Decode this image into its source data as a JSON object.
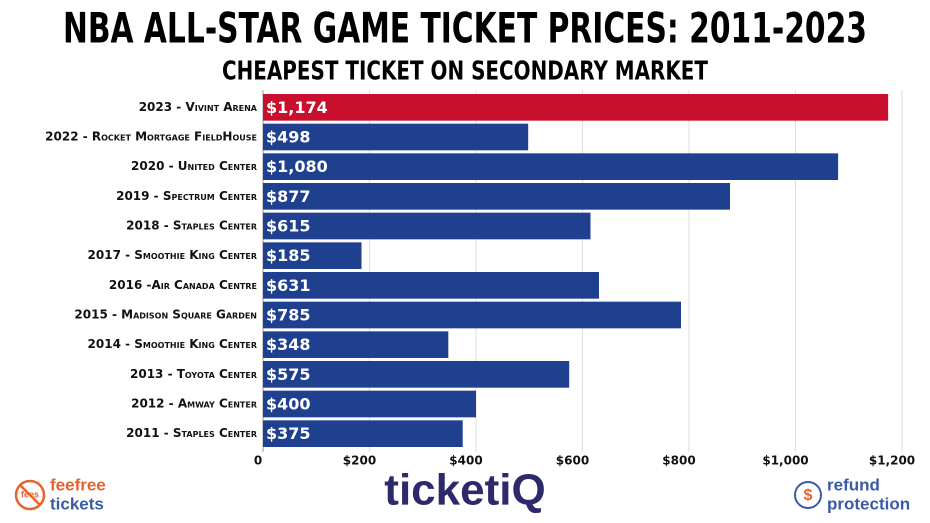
{
  "chart_data": {
    "type": "bar",
    "orientation": "horizontal",
    "title": "NBA ALL-STAR GAME TICKET PRICES: 2011-2023",
    "subtitle": "CHEAPEST TICKET ON SECONDARY MARKET",
    "categories": [
      "2023 - Vivint Arena",
      "2022 - Rocket Mortgage FieldHouse",
      "2020 - United Center",
      "2019 - Spectrum Center",
      "2018 - Staples Center",
      "2017 - Smoothie King Center",
      "2016 -Air Canada Centre",
      "2015 - Madison Square Garden",
      "2014 - Smoothie King Center",
      "2013 - Toyota Center",
      "2012 - Amway Center",
      "2011 - Staples Center"
    ],
    "values": [
      1174,
      498,
      1080,
      877,
      615,
      185,
      631,
      785,
      348,
      575,
      400,
      375
    ],
    "value_labels": [
      "$1,174",
      "$498",
      "$1,080",
      "$877",
      "$615",
      "$185",
      "$631",
      "$785",
      "$348",
      "$575",
      "$400",
      "$375"
    ],
    "colors": [
      "#c8102e",
      "#1f3f8f",
      "#1f3f8f",
      "#1f3f8f",
      "#1f3f8f",
      "#1f3f8f",
      "#1f3f8f",
      "#1f3f8f",
      "#1f3f8f",
      "#1f3f8f",
      "#1f3f8f",
      "#1f3f8f"
    ],
    "xlim": [
      0,
      1200
    ],
    "xticks": [
      0,
      {
        "value": 200,
        "label": "$200"
      },
      {
        "value": 400,
        "label": "$400"
      },
      {
        "value": 600,
        "label": "$600"
      },
      {
        "value": 800,
        "label": "$800"
      },
      {
        "value": 1000,
        "label": "$1,000"
      },
      {
        "value": 1200,
        "label": "$1,200"
      }
    ],
    "grid": true,
    "annotations": [
      "fees",
      "feefree",
      "tickets",
      "ticketiQ",
      "$",
      "refund",
      "protection"
    ]
  }
}
